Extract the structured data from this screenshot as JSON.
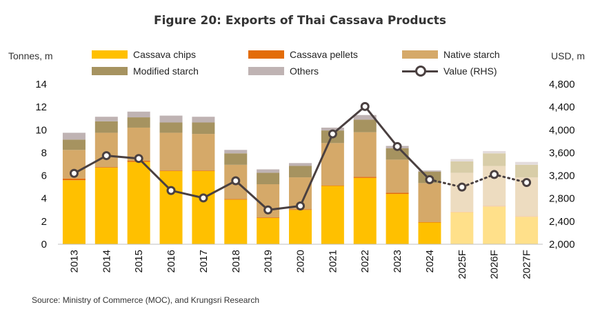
{
  "chart_data": {
    "type": "bar",
    "title": "Figure 20: Exports of Thai Cassava Products",
    "ylabel": "Tonnes, m",
    "y2label": "USD, m",
    "ylim": [
      0,
      14
    ],
    "y2lim": [
      2000,
      4800
    ],
    "yticks": [
      "0",
      "2",
      "4",
      "6",
      "8",
      "10",
      "12",
      "14"
    ],
    "y2ticks": [
      "2,000",
      "2,400",
      "2,800",
      "3,200",
      "3,600",
      "4,000",
      "4,400",
      "4,800"
    ],
    "grid": false,
    "legend_position": "top",
    "stacked": true,
    "categories": [
      "2013",
      "2014",
      "2015",
      "2016",
      "2017",
      "2018",
      "2019",
      "2020",
      "2021",
      "2022",
      "2023",
      "2024",
      "2025F",
      "2026F",
      "2027F"
    ],
    "forecast_from_index": 12,
    "series": [
      {
        "name": "Cassava chips",
        "color": "#FFC000",
        "forecast_color": "#FFE08A",
        "values": [
          5.6,
          6.7,
          7.2,
          6.4,
          6.4,
          3.9,
          2.3,
          3.0,
          5.1,
          5.8,
          4.4,
          1.9,
          2.8,
          3.3,
          2.4
        ]
      },
      {
        "name": "Cassava pellets",
        "color": "#E36C09",
        "forecast_color": "#F6C4A0",
        "values": [
          0.15,
          0.05,
          0.1,
          0.05,
          0.05,
          0.05,
          0.05,
          0.05,
          0.05,
          0.1,
          0.1,
          0.05,
          0.05,
          0.05,
          0.05
        ]
      },
      {
        "name": "Native starch",
        "color": "#D5A969",
        "forecast_color": "#EDDCC0",
        "values": [
          2.5,
          3.0,
          2.9,
          3.3,
          3.2,
          3.0,
          2.9,
          2.8,
          3.7,
          3.9,
          2.9,
          3.4,
          3.4,
          3.5,
          3.4
        ]
      },
      {
        "name": "Modified starch",
        "color": "#A69360",
        "forecast_color": "#D8CDA8",
        "values": [
          0.9,
          1.0,
          0.9,
          0.9,
          1.0,
          1.0,
          1.0,
          1.0,
          1.1,
          1.1,
          1.0,
          1.0,
          1.0,
          1.1,
          1.1
        ]
      },
      {
        "name": "Others",
        "color": "#BFB3B3",
        "forecast_color": "#E3DCDC",
        "values": [
          0.6,
          0.4,
          0.5,
          0.6,
          0.5,
          0.3,
          0.3,
          0.25,
          0.25,
          0.4,
          0.2,
          0.1,
          0.2,
          0.2,
          0.25
        ]
      }
    ],
    "line_series": {
      "name": "Value (RHS)",
      "color": "#4A4040",
      "values": [
        3240,
        3550,
        3500,
        2940,
        2810,
        3110,
        2600,
        2670,
        3930,
        4410,
        3710,
        3130,
        3000,
        3220,
        3080
      ],
      "forecast_from_index": 11
    }
  },
  "source": "Source: Ministry of Commerce (MOC), and Krungsri Research"
}
